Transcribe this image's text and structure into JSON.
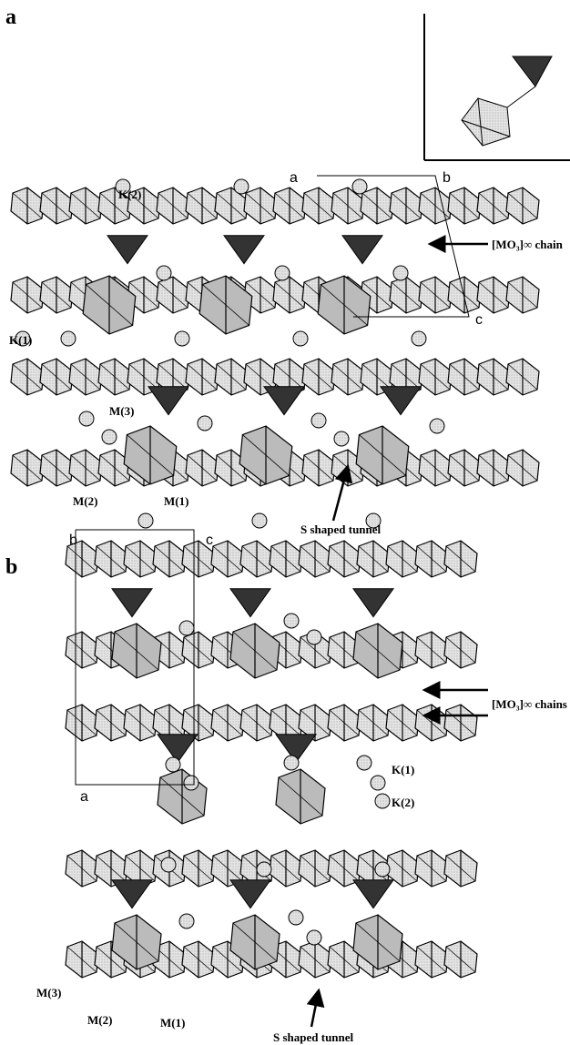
{
  "panels": [
    {
      "label": "a",
      "annotations": [
        "K(2)",
        "a",
        "b",
        "[MO₃]∞ chain",
        "K(1)",
        "c",
        "M(3)",
        "M(2)",
        "M(1)",
        "S shaped tunnel"
      ]
    },
    {
      "label": "b",
      "annotations": [
        "b",
        "c",
        "[MO₃]∞ chains",
        "K(1)",
        "a",
        "K(2)",
        "M(3)",
        "M(2)",
        "M(1)",
        "S shaped tunnel"
      ]
    }
  ]
}
